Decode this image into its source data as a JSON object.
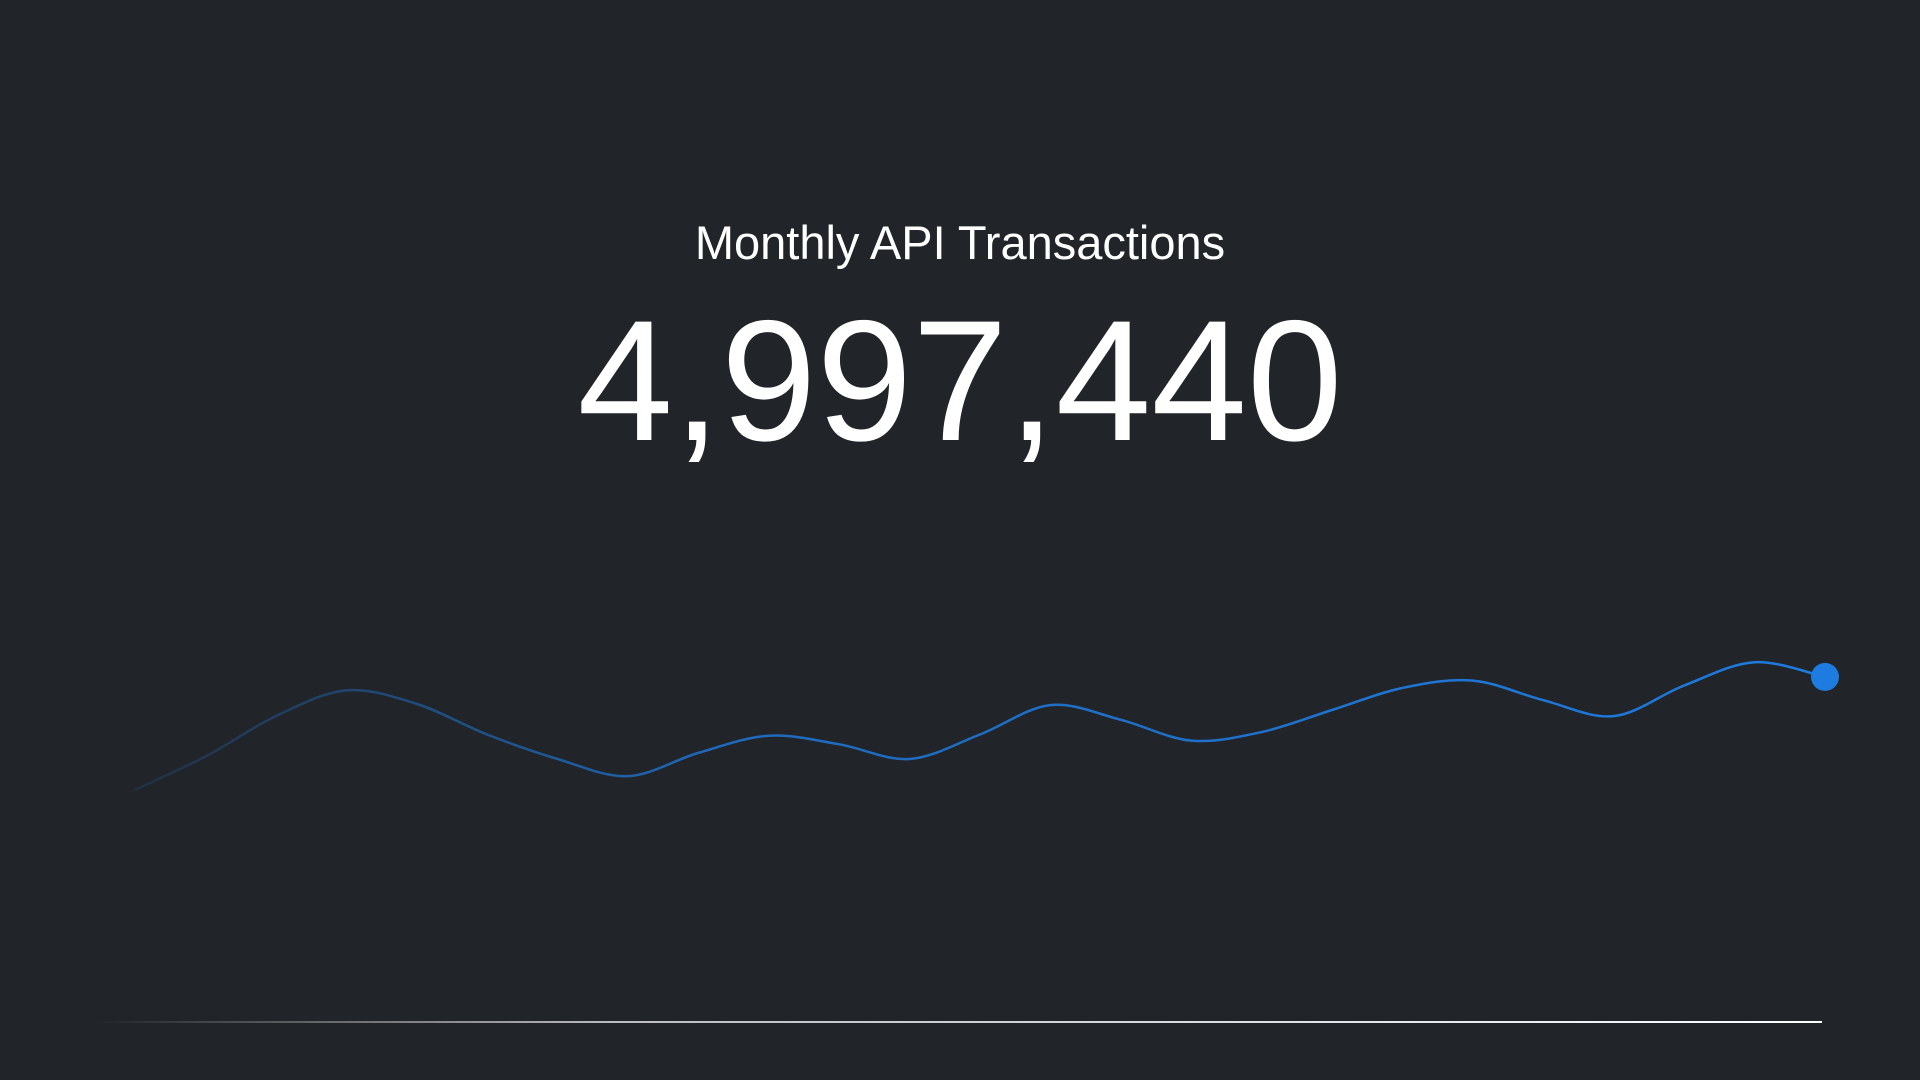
{
  "chart_data": {
    "type": "line",
    "title": "Monthly API Transactions",
    "headline": "4,997,440",
    "x": [
      1,
      2,
      3,
      4,
      5,
      6,
      7,
      8,
      9,
      10,
      11,
      12,
      13,
      14,
      15,
      16,
      17,
      18,
      19,
      20,
      21,
      22,
      23,
      24,
      25
    ],
    "xlim": [
      1,
      25
    ],
    "series": [
      {
        "color": "#1e7be0",
        "values": [
          55,
          82,
          115,
          136,
          125,
          100,
          80,
          66,
          85,
          99,
          92,
          80,
          100,
          124,
          112,
          95,
          102,
          120,
          138,
          144,
          128,
          115,
          140,
          159,
          147
        ]
      }
    ],
    "ylim": [
      0,
      200
    ]
  }
}
